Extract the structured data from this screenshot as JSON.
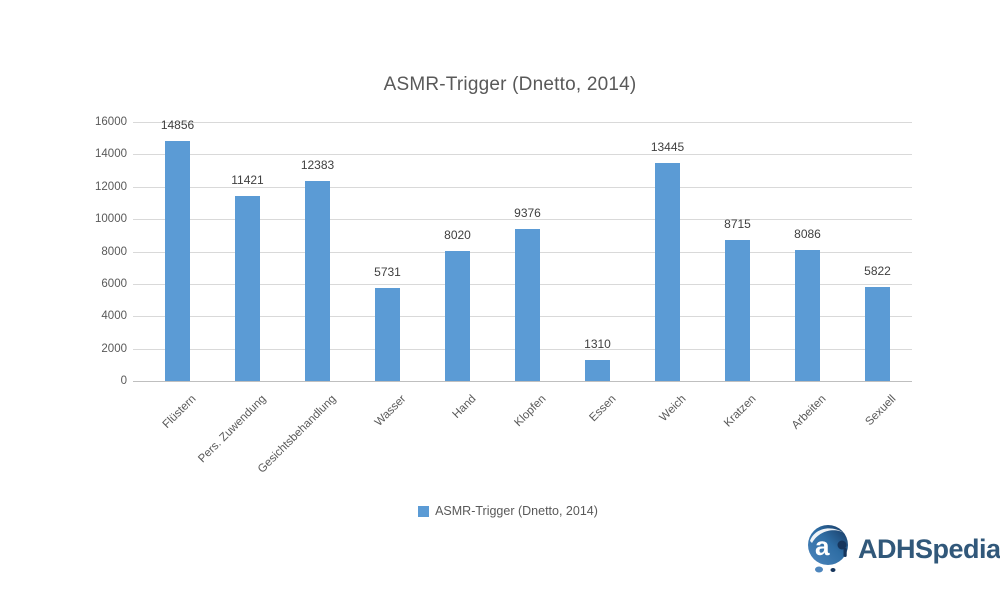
{
  "chart_data": {
    "type": "bar",
    "title": "ASMR-Trigger (Dnetto, 2014)",
    "categories": [
      "Flüstern",
      "Pers. Zuwendung",
      "Gesichtsbehandlung",
      "Wasser",
      "Hand",
      "Klopfen",
      "Essen",
      "Weich",
      "Kratzen",
      "Arbeiten",
      "Sexuell"
    ],
    "values": [
      14856,
      11421,
      12383,
      5731,
      8020,
      9376,
      1310,
      13445,
      8715,
      8086,
      5822
    ],
    "xlabel": "",
    "ylabel": "",
    "ylim": [
      0,
      16000
    ],
    "ytick_step": 2000,
    "ytick_labels": [
      "0",
      "2000",
      "4000",
      "6000",
      "8000",
      "10000",
      "12000",
      "14000",
      "16000"
    ],
    "grid": true,
    "data_labels": true,
    "legend": {
      "label": "ASMR-Trigger (Dnetto, 2014)",
      "position": "bottom"
    }
  },
  "colors": {
    "bar": "#5B9BD5",
    "gridline": "#D9D9D9",
    "axis_line": "#BFBFBF",
    "title_text": "#595959",
    "tick_text": "#595959",
    "value_label_text": "#404040",
    "logo_text": "#31587A",
    "logo_dark": "#16355C",
    "logo_mid": "#2E6DA4",
    "logo_light": "#4E86BD"
  },
  "logo": {
    "brand_bold": "ADHS",
    "brand_rest": "pedia",
    "registered_mark": "®"
  }
}
